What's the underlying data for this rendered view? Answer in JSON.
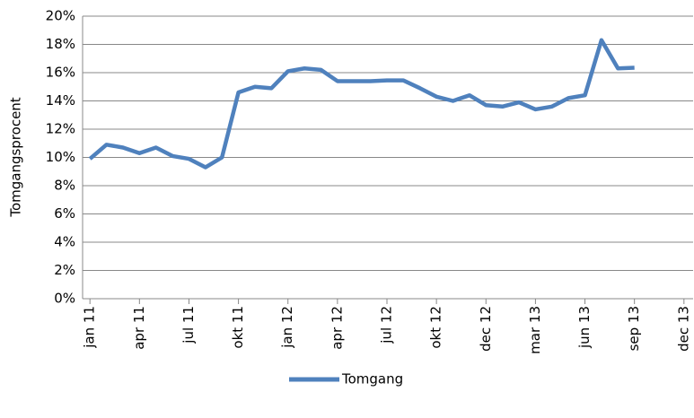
{
  "chart_data": {
    "type": "line",
    "y_label": "Tomgangsprocent",
    "categories": [
      "jan 11",
      null,
      null,
      "apr 11",
      null,
      null,
      "jul 11",
      null,
      null,
      "okt 11",
      null,
      null,
      "jan 12",
      null,
      null,
      "apr 12",
      null,
      null,
      "jul 12",
      null,
      null,
      "okt 12",
      null,
      null,
      "dec 12",
      null,
      null,
      "mar 13",
      null,
      null,
      "jun 13",
      null,
      null,
      "sep 13",
      null,
      null,
      "dec 13"
    ],
    "series": [
      {
        "name": "Tomgang",
        "color": "#4f81bd",
        "values": [
          9.9,
          10.9,
          10.7,
          10.3,
          10.7,
          10.1,
          9.9,
          9.3,
          10.0,
          14.6,
          15.0,
          14.9,
          16.1,
          16.3,
          16.2,
          15.4,
          15.4,
          15.4,
          15.45,
          15.45,
          14.9,
          14.3,
          14.0,
          14.4,
          13.7,
          13.6,
          13.9,
          13.4,
          13.6,
          14.2,
          14.4,
          18.3,
          16.3,
          16.35,
          null,
          null,
          null
        ]
      }
    ],
    "ylim": [
      0,
      20
    ],
    "yticks": [
      {
        "value": 0,
        "label": "0%"
      },
      {
        "value": 2,
        "label": "2%"
      },
      {
        "value": 4,
        "label": "4%"
      },
      {
        "value": 6,
        "label": "6%"
      },
      {
        "value": 8,
        "label": "8%"
      },
      {
        "value": 10,
        "label": "10%"
      },
      {
        "value": 12,
        "label": "12%"
      },
      {
        "value": 14,
        "label": "14%"
      },
      {
        "value": 16,
        "label": "16%"
      },
      {
        "value": 18,
        "label": "18%"
      },
      {
        "value": 20,
        "label": "20%"
      }
    ],
    "grid": true,
    "legend": "bottom"
  }
}
